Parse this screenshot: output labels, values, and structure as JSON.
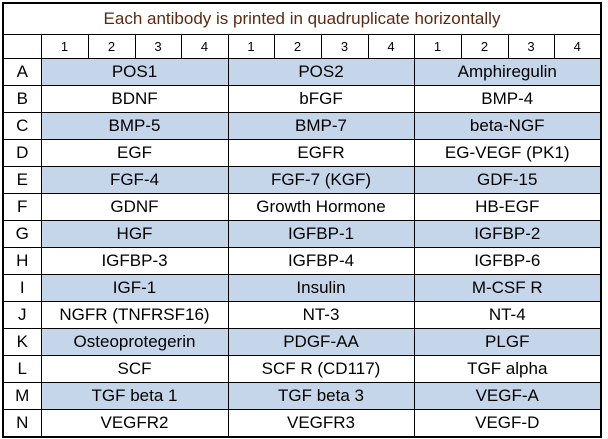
{
  "title": "Each antibody is printed in quadruplicate horizontally",
  "column_numbers": [
    "1",
    "2",
    "3",
    "4",
    "1",
    "2",
    "3",
    "4",
    "1",
    "2",
    "3",
    "4"
  ],
  "colors": {
    "shaded_row": "#c6d6ea",
    "title_text": "#5c2a12",
    "plain_row": "#ffffff"
  },
  "rows": [
    {
      "label": "A",
      "shaded": true,
      "cells": [
        "POS1",
        "POS2",
        "Amphiregulin"
      ]
    },
    {
      "label": "B",
      "shaded": false,
      "cells": [
        "BDNF",
        "bFGF",
        "BMP-4"
      ]
    },
    {
      "label": "C",
      "shaded": true,
      "cells": [
        "BMP-5",
        "BMP-7",
        "beta-NGF"
      ]
    },
    {
      "label": "D",
      "shaded": false,
      "cells": [
        "EGF",
        "EGFR",
        "EG-VEGF (PK1)"
      ]
    },
    {
      "label": "E",
      "shaded": true,
      "cells": [
        "FGF-4",
        "FGF-7 (KGF)",
        "GDF-15"
      ]
    },
    {
      "label": "F",
      "shaded": false,
      "cells": [
        "GDNF",
        "Growth Hormone",
        "HB-EGF"
      ]
    },
    {
      "label": "G",
      "shaded": true,
      "cells": [
        "HGF",
        "IGFBP-1",
        "IGFBP-2"
      ]
    },
    {
      "label": "H",
      "shaded": false,
      "cells": [
        "IGFBP-3",
        "IGFBP-4",
        "IGFBP-6"
      ]
    },
    {
      "label": "I",
      "shaded": true,
      "cells": [
        "IGF-1",
        "Insulin",
        "M-CSF R"
      ]
    },
    {
      "label": "J",
      "shaded": false,
      "cells": [
        "NGFR (TNFRSF16)",
        "NT-3",
        "NT-4"
      ]
    },
    {
      "label": "K",
      "shaded": true,
      "cells": [
        "Osteoprotegerin",
        "PDGF-AA",
        "PLGF"
      ]
    },
    {
      "label": "L",
      "shaded": false,
      "cells": [
        "SCF",
        "SCF R (CD117)",
        "TGF alpha"
      ]
    },
    {
      "label": "M",
      "shaded": true,
      "cells": [
        "TGF beta 1",
        "TGF beta 3",
        "VEGF-A"
      ]
    },
    {
      "label": "N",
      "shaded": false,
      "cells": [
        "VEGFR2",
        "VEGFR3",
        "VEGF-D"
      ]
    }
  ]
}
